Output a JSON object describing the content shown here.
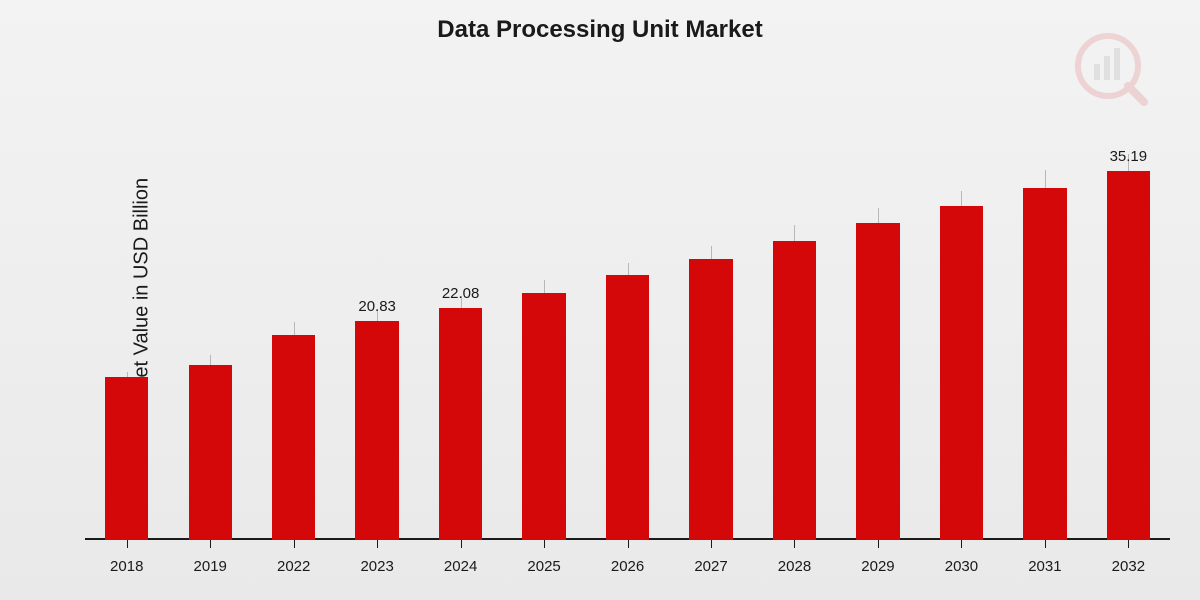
{
  "chart": {
    "type": "bar",
    "title": "Data Processing Unit Market",
    "title_fontsize": 24,
    "ylabel": "Market Value in USD Billion",
    "ylabel_fontsize": 20,
    "xlabel_fontsize": 15,
    "bar_label_fontsize": 15,
    "categories": [
      "2018",
      "2019",
      "2022",
      "2023",
      "2024",
      "2025",
      "2026",
      "2027",
      "2028",
      "2029",
      "2030",
      "2031",
      "2032"
    ],
    "values": [
      15.5,
      16.7,
      19.5,
      20.83,
      22.08,
      23.5,
      25.2,
      26.8,
      28.5,
      30.2,
      31.8,
      33.5,
      35.19
    ],
    "bar_labels": [
      null,
      null,
      null,
      "20.83",
      "22.08",
      null,
      null,
      null,
      null,
      null,
      null,
      null,
      "35.19"
    ],
    "bar_color": "#d40808",
    "grid_color": "#b8b8b8",
    "baseline_color": "#1a1a1a",
    "text_color": "#1a1a1a",
    "background_gradient": [
      "#f3f3f3",
      "#e9e9e9"
    ],
    "ylim": [
      0,
      40
    ],
    "bar_width": 0.52,
    "watermark_opacity": 0.12,
    "gridline_top_offsets": [
      0.4,
      0.44,
      0.52,
      0.55,
      0.58,
      0.62,
      0.66,
      0.7,
      0.75,
      0.79,
      0.83,
      0.88,
      0.92
    ]
  }
}
